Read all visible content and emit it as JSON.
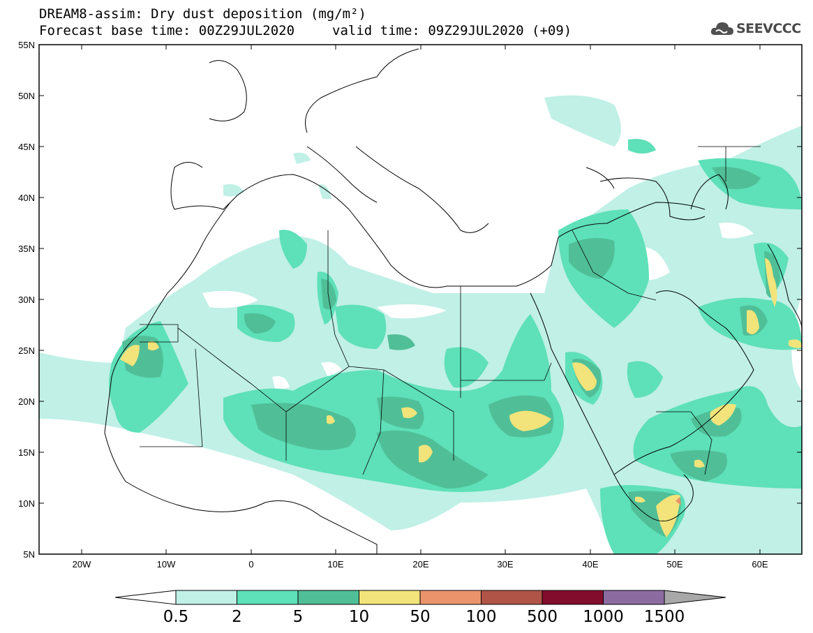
{
  "header": {
    "title": "DREAM8-assim: Dry dust deposition (mg/m²)",
    "base_time": "Forecast base time: 00Z29JUL2020",
    "valid_time": "valid time: 09Z29JUL2020 (+09)"
  },
  "logo": {
    "text": "SEEVCCC",
    "icon": "cloud-icon"
  },
  "map": {
    "lon_range": [
      -25,
      65
    ],
    "lat_range": [
      5,
      55
    ],
    "lat_ticks": [
      "55N",
      "50N",
      "45N",
      "40N",
      "35N",
      "30N",
      "25N",
      "20N",
      "15N",
      "10N",
      "5N"
    ],
    "lon_ticks": [
      "20W",
      "10W",
      "0",
      "10E",
      "20E",
      "30E",
      "40E",
      "50E",
      "60E"
    ]
  },
  "colorbar": {
    "labels": [
      "0.5",
      "2",
      "5",
      "10",
      "50",
      "100",
      "500",
      "1000",
      "1500"
    ],
    "colors": [
      "#c0f0e6",
      "#5ee0b8",
      "#50bf98",
      "#f2e47a",
      "#ea946c",
      "#b05448",
      "#820c2c",
      "#8c6ca0",
      "#a8a8a8"
    ]
  },
  "colors": {
    "ocean": "#ffffff",
    "land": "#ffffff",
    "border": "#000000"
  }
}
